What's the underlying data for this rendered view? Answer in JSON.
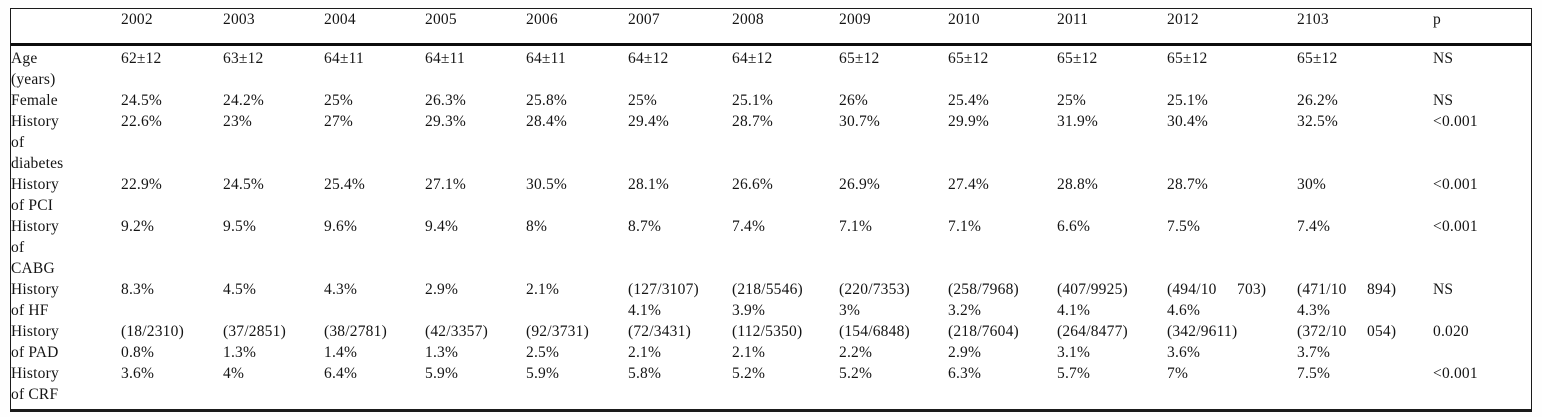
{
  "table": {
    "description_colors": {
      "text": "#141414",
      "rule": "#0d0d0d",
      "background": "#ffffff"
    },
    "columns": [
      "",
      "2002",
      "2003",
      "2004",
      "2005",
      "2006",
      "2007",
      "2008",
      "2009",
      "2010",
      "2011",
      "2012",
      "2103",
      "p"
    ],
    "rows": [
      {
        "label": "Age\n(years)",
        "cells": [
          "62±12",
          "63±12",
          "64±11",
          "64±11",
          "64±11",
          "64±12",
          "64±12",
          "65±12",
          "65±12",
          "65±12",
          "65±12",
          "65±12",
          "NS"
        ]
      },
      {
        "label": "Female",
        "cells": [
          "24.5%",
          "24.2%",
          "25%",
          "26.3%",
          "25.8%",
          "25%",
          "25.1%",
          "26%",
          "25.4%",
          "25%",
          "25.1%",
          "26.2%",
          "NS"
        ]
      },
      {
        "label": "History\nof\ndiabetes",
        "cells": [
          "22.6%",
          "23%",
          "27%",
          "29.3%",
          "28.4%",
          "29.4%",
          "28.7%",
          "30.7%",
          "29.9%",
          "31.9%",
          "30.4%",
          "32.5%",
          "<0.001"
        ]
      },
      {
        "label": "History\nof PCI",
        "cells": [
          "22.9%",
          "24.5%",
          "25.4%",
          "27.1%",
          "30.5%",
          "28.1%",
          "26.6%",
          "26.9%",
          "27.4%",
          "28.8%",
          "28.7%",
          "30%",
          "<0.001"
        ]
      },
      {
        "label": "History\nof\nCABG",
        "cells": [
          "9.2%",
          "9.5%",
          "9.6%",
          "9.4%",
          "8%",
          "8.7%",
          "7.4%",
          "7.1%",
          "7.1%",
          "6.6%",
          "7.5%",
          "7.4%",
          "<0.001"
        ]
      },
      {
        "label": "History\nof HF",
        "cells": [
          "8.3%",
          "4.5%",
          "4.3%",
          "2.9%",
          "2.1%",
          "(127/3107)\n4.1%",
          "(218/5546)\n3.9%",
          "(220/7353)\n3%",
          "(258/7968)\n3.2%",
          "(407/9925)\n4.1%",
          "(494/10     703)\n4.6%",
          "(471/10     894)\n4.3%",
          "NS"
        ]
      },
      {
        "label": "History\nof PAD",
        "cells": [
          "(18/2310)\n0.8%",
          "(37/2851)\n1.3%",
          "(38/2781)\n1.4%",
          "(42/3357)\n1.3%",
          "(92/3731)\n2.5%",
          "(72/3431)\n2.1%",
          "(112/5350)\n2.1%",
          "(154/6848)\n2.2%",
          "(218/7604)\n2.9%",
          "(264/8477)\n3.1%",
          "(342/9611)\n3.6%",
          "(372/10     054)\n3.7%",
          "0.020"
        ]
      },
      {
        "label": "History\nof CRF",
        "cells": [
          "3.6%",
          "4%",
          "6.4%",
          "5.9%",
          "5.9%",
          "5.8%",
          "5.2%",
          "5.2%",
          "6.3%",
          "5.7%",
          "7%",
          "7.5%",
          "<0.001"
        ]
      }
    ]
  }
}
